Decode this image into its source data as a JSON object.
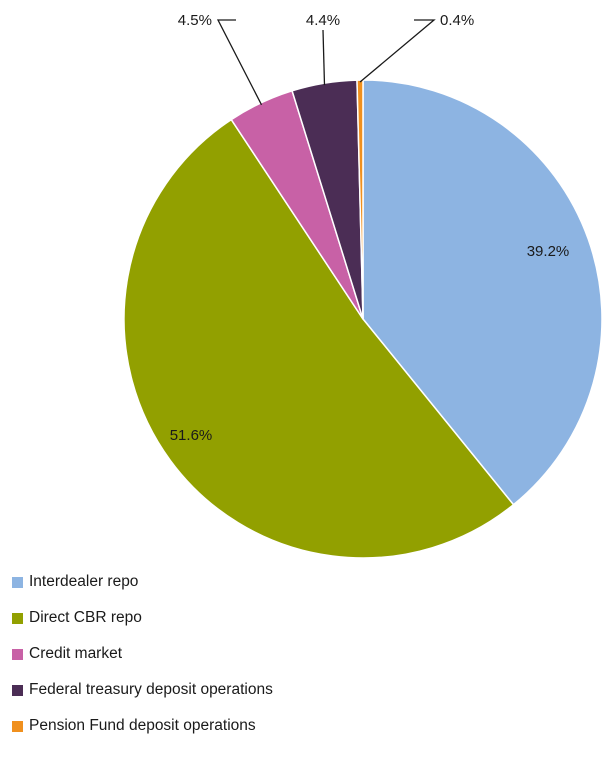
{
  "chart_data": {
    "type": "pie",
    "categories": [
      "Interdealer repo",
      "Direct CBR repo",
      "Credit market",
      "Federal treasury deposit operations",
      "Pension Fund deposit operations"
    ],
    "values": [
      39.2,
      51.6,
      4.5,
      4.4,
      0.4
    ],
    "value_labels": [
      "39.2%",
      "51.6%",
      "4.5%",
      "4.4%",
      "0.4%"
    ],
    "colors": [
      "#8db4e2",
      "#92a000",
      "#c861a6",
      "#4b2d55",
      "#f0901e"
    ],
    "start_angle_deg": 0,
    "direction": "clockwise",
    "legend_position": "bottom-left"
  }
}
